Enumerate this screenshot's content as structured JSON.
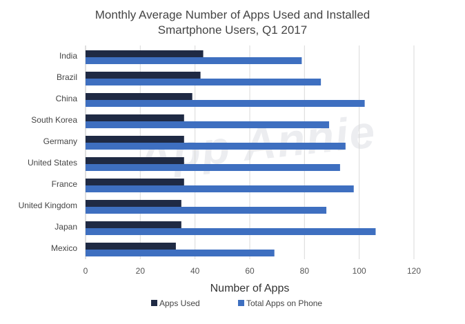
{
  "title_lines": [
    "Monthly Average Number of Apps Used and Installed",
    "Smartphone Users, Q1 2017"
  ],
  "watermark": "App Annie",
  "chart_data": {
    "type": "bar",
    "orientation": "horizontal",
    "title": "Monthly Average Number of Apps Used and Installed Smartphone Users, Q1 2017",
    "xlabel": "Number of Apps",
    "ylabel": "",
    "xlim": [
      0,
      120
    ],
    "xticks": [
      0,
      20,
      40,
      60,
      80,
      100,
      120
    ],
    "grid": true,
    "legend_position": "bottom",
    "categories": [
      "India",
      "Brazil",
      "China",
      "South Korea",
      "Germany",
      "United States",
      "France",
      "United Kingdom",
      "Japan",
      "Mexico"
    ],
    "series": [
      {
        "name": "Apps Used",
        "color": "#1f2a44",
        "values": [
          43,
          42,
          39,
          36,
          36,
          36,
          36,
          35,
          35,
          33
        ]
      },
      {
        "name": "Total Apps on Phone",
        "color": "#3e6fc0",
        "values": [
          79,
          86,
          102,
          89,
          95,
          93,
          98,
          88,
          106,
          69
        ]
      }
    ]
  }
}
